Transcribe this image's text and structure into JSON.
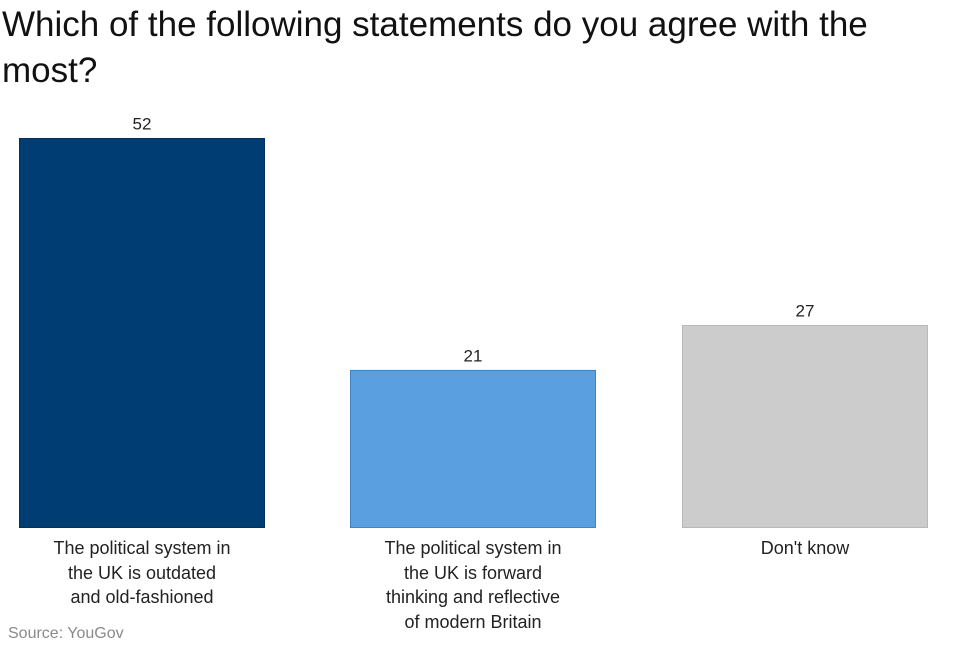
{
  "chart_data": {
    "type": "bar",
    "title": "Which of the following statements do you agree with the most?",
    "categories": [
      "The political system in the UK is outdated and old-fashioned",
      "The political system in the UK is forward thinking and reflective of modern Britain",
      "Don't know"
    ],
    "category_lines": [
      [
        "The political system in",
        "the UK is outdated",
        "and old-fashioned"
      ],
      [
        "The political system in",
        "the UK is forward",
        "thinking and reflective",
        "of modern Britain"
      ],
      [
        "Don't know"
      ]
    ],
    "values": [
      52,
      21,
      27
    ],
    "colors": [
      "#003d73",
      "#5aa0e0",
      "#cccccc"
    ],
    "border_colors": [
      "#003060",
      "#3c84c8",
      "#b8b8b8"
    ],
    "xlabel": "",
    "ylabel": "",
    "ylim": [
      0,
      52
    ],
    "grid": false,
    "legend": "none"
  },
  "source": "Source: YouGov"
}
